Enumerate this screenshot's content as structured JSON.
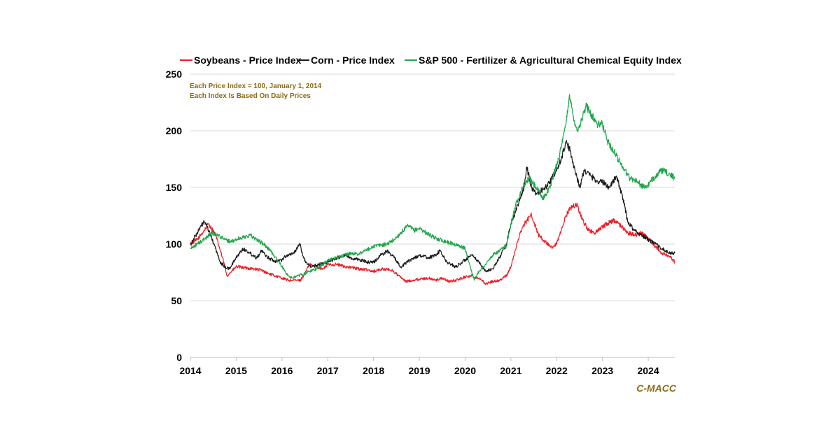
{
  "chart_data": {
    "type": "line",
    "title": "",
    "xlabel": "",
    "ylabel": "",
    "xlim": [
      2014.0,
      2024.58
    ],
    "ylim": [
      0,
      250
    ],
    "yticks": [
      0,
      50,
      100,
      150,
      200,
      250
    ],
    "xticks": [
      "2014",
      "2015",
      "2016",
      "2017",
      "2018",
      "2019",
      "2020",
      "2021",
      "2022",
      "2023",
      "2024"
    ],
    "grid": "horizontal",
    "legend_position": "top",
    "annotations": [
      "Each Price Index = 100, January 1, 2014",
      "Each Index Is Based On Daily Prices"
    ],
    "source": "C-MACC",
    "series": [
      {
        "name": "Soybeans - Price Index",
        "color": "#ee1c25",
        "x": [
          2014.0,
          2014.15,
          2014.3,
          2014.4,
          2014.55,
          2014.7,
          2014.8,
          2014.9,
          2015.0,
          2015.2,
          2015.4,
          2015.55,
          2015.7,
          2015.85,
          2016.0,
          2016.15,
          2016.3,
          2016.4,
          2016.5,
          2016.6,
          2016.75,
          2016.9,
          2017.0,
          2017.2,
          2017.4,
          2017.55,
          2017.7,
          2017.9,
          2018.0,
          2018.2,
          2018.4,
          2018.55,
          2018.7,
          2018.85,
          2019.0,
          2019.2,
          2019.35,
          2019.5,
          2019.65,
          2019.8,
          2020.0,
          2020.15,
          2020.3,
          2020.45,
          2020.6,
          2020.75,
          2020.9,
          2021.0,
          2021.1,
          2021.2,
          2021.3,
          2021.45,
          2021.6,
          2021.75,
          2021.9,
          2022.0,
          2022.1,
          2022.2,
          2022.3,
          2022.45,
          2022.55,
          2022.7,
          2022.85,
          2023.0,
          2023.1,
          2023.25,
          2023.4,
          2023.55,
          2023.7,
          2023.85,
          2024.0,
          2024.15,
          2024.3,
          2024.45,
          2024.58
        ],
        "values": [
          100,
          104,
          112,
          118,
          108,
          88,
          72,
          76,
          80,
          79,
          78,
          77,
          74,
          72,
          70,
          68,
          68,
          68,
          74,
          82,
          80,
          78,
          82,
          82,
          80,
          79,
          78,
          77,
          76,
          78,
          77,
          72,
          67,
          68,
          69,
          70,
          68,
          70,
          67,
          68,
          71,
          72,
          70,
          65,
          67,
          68,
          72,
          80,
          95,
          110,
          118,
          126,
          108,
          102,
          96,
          100,
          112,
          125,
          132,
          135,
          122,
          112,
          110,
          115,
          118,
          121,
          116,
          110,
          108,
          110,
          105,
          98,
          92,
          90,
          84
        ]
      },
      {
        "name": "Corn - Price Index",
        "color": "#1a1a1a",
        "x": [
          2014.0,
          2014.15,
          2014.3,
          2014.4,
          2014.55,
          2014.65,
          2014.75,
          2014.85,
          2015.0,
          2015.15,
          2015.3,
          2015.45,
          2015.55,
          2015.7,
          2015.85,
          2016.0,
          2016.1,
          2016.25,
          2016.4,
          2016.45,
          2016.55,
          2016.65,
          2016.8,
          2017.0,
          2017.2,
          2017.4,
          2017.55,
          2017.7,
          2017.9,
          2018.0,
          2018.15,
          2018.3,
          2018.45,
          2018.6,
          2018.8,
          2019.0,
          2019.2,
          2019.35,
          2019.45,
          2019.6,
          2019.8,
          2020.0,
          2020.15,
          2020.3,
          2020.45,
          2020.6,
          2020.75,
          2020.9,
          2021.0,
          2021.1,
          2021.2,
          2021.3,
          2021.35,
          2021.45,
          2021.55,
          2021.7,
          2021.85,
          2022.0,
          2022.1,
          2022.2,
          2022.3,
          2022.4,
          2022.5,
          2022.6,
          2022.75,
          2022.9,
          2023.0,
          2023.15,
          2023.3,
          2023.45,
          2023.55,
          2023.7,
          2023.85,
          2024.0,
          2024.15,
          2024.3,
          2024.45,
          2024.58
        ],
        "values": [
          100,
          110,
          120,
          112,
          96,
          84,
          80,
          78,
          88,
          96,
          92,
          88,
          94,
          88,
          85,
          86,
          90,
          92,
          100,
          90,
          82,
          80,
          82,
          84,
          88,
          90,
          87,
          86,
          84,
          84,
          90,
          94,
          88,
          80,
          86,
          90,
          88,
          90,
          94,
          84,
          80,
          86,
          90,
          84,
          76,
          78,
          88,
          100,
          118,
          128,
          140,
          152,
          168,
          150,
          145,
          148,
          155,
          165,
          175,
          190,
          182,
          165,
          150,
          165,
          160,
          155,
          155,
          150,
          160,
          140,
          120,
          112,
          108,
          104,
          100,
          96,
          92,
          92
        ]
      },
      {
        "name": "S&P 500 - Fertilizer & Agricultural Chemical Equity Index",
        "color": "#1fa64a",
        "x": [
          2014.0,
          2014.15,
          2014.3,
          2014.45,
          2014.6,
          2014.75,
          2014.9,
          2015.0,
          2015.15,
          2015.3,
          2015.45,
          2015.6,
          2015.75,
          2015.9,
          2016.0,
          2016.1,
          2016.2,
          2016.35,
          2016.5,
          2016.6,
          2016.75,
          2016.9,
          2017.0,
          2017.2,
          2017.35,
          2017.5,
          2017.65,
          2017.8,
          2018.0,
          2018.15,
          2018.3,
          2018.45,
          2018.6,
          2018.75,
          2018.9,
          2019.0,
          2019.15,
          2019.3,
          2019.45,
          2019.6,
          2019.75,
          2019.9,
          2020.0,
          2020.1,
          2020.2,
          2020.3,
          2020.45,
          2020.6,
          2020.75,
          2020.9,
          2021.0,
          2021.1,
          2021.25,
          2021.4,
          2021.55,
          2021.7,
          2021.85,
          2022.0,
          2022.1,
          2022.2,
          2022.28,
          2022.35,
          2022.45,
          2022.55,
          2022.65,
          2022.75,
          2022.9,
          2023.0,
          2023.1,
          2023.2,
          2023.3,
          2023.45,
          2023.6,
          2023.75,
          2023.9,
          2024.0,
          2024.15,
          2024.3,
          2024.45,
          2024.58
        ],
        "values": [
          96,
          100,
          104,
          110,
          108,
          104,
          102,
          104,
          106,
          108,
          104,
          100,
          94,
          86,
          80,
          74,
          70,
          72,
          74,
          76,
          78,
          82,
          86,
          88,
          90,
          92,
          91,
          94,
          98,
          99,
          100,
          104,
          110,
          116,
          112,
          114,
          110,
          106,
          104,
          102,
          100,
          98,
          96,
          82,
          68,
          76,
          82,
          90,
          94,
          98,
          118,
          134,
          150,
          158,
          150,
          140,
          150,
          170,
          185,
          205,
          232,
          215,
          200,
          210,
          222,
          215,
          205,
          206,
          192,
          185,
          178,
          168,
          158,
          156,
          150,
          152,
          160,
          165,
          162,
          158
        ]
      }
    ]
  }
}
